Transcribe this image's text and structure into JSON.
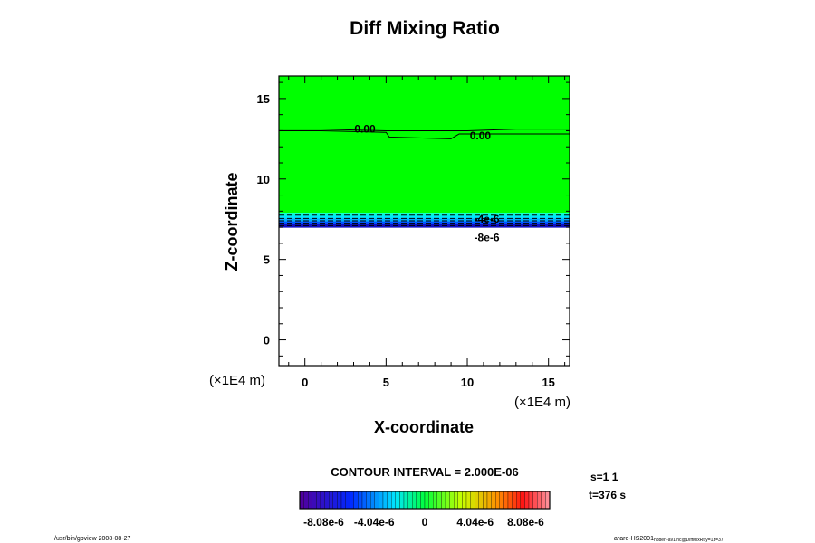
{
  "chart_data": {
    "type": "heatmap",
    "title": "Diff Mixing Ratio",
    "xlabel": "X-coordinate",
    "ylabel": "Z-coordinate",
    "x_unit": "(×1E4 m)",
    "y_unit": "(×1E4 m)",
    "xlim": [
      -1.6,
      16.3
    ],
    "ylim": [
      -1.6,
      16.4
    ],
    "xticks": [
      0,
      5,
      10,
      15
    ],
    "yticks": [
      0,
      5,
      10,
      15
    ],
    "fields": [
      {
        "name": "zero band",
        "z_from": 7.9,
        "z_to": 16.4,
        "color": "#00ff00"
      },
      {
        "name": "negative band",
        "z_from": 7.0,
        "z_to": 7.9,
        "colors": [
          "#00ffcc",
          "#00e5ff",
          "#00aaff",
          "#0055ff",
          "#1010c0"
        ]
      }
    ],
    "contours": [
      {
        "label": "0.00",
        "points": [
          [
            -1.6,
            13.0
          ],
          [
            1,
            13.0
          ],
          [
            5,
            12.9
          ],
          [
            5.2,
            12.6
          ],
          [
            9,
            12.5
          ],
          [
            9.5,
            12.8
          ],
          [
            16.3,
            12.8
          ]
        ]
      },
      {
        "label": "0.00",
        "points": [
          [
            -1.6,
            13.1
          ],
          [
            1,
            13.1
          ],
          [
            5,
            13.0
          ],
          [
            10,
            13.0
          ],
          [
            13,
            13.1
          ],
          [
            16.3,
            13.1
          ]
        ]
      }
    ],
    "contour_labels": [
      {
        "text": "0.00",
        "x": 3.7,
        "z": 13.1
      },
      {
        "text": "0.00",
        "x": 10.8,
        "z": 12.7
      },
      {
        "text": "-4e-6",
        "x": 11.2,
        "z": 7.5
      },
      {
        "text": "-8e-6",
        "x": 11.2,
        "z": 7.2
      }
    ],
    "dashed_levels_z": [
      7.75,
      7.55,
      7.4,
      7.25,
      7.1
    ],
    "contour_interval": "CONTOUR INTERVAL = 2.000E-06",
    "colorbar": {
      "min": -1e-05,
      "max": 1e-05,
      "ticks": [
        "-8.08e-6",
        "-4.04e-6",
        "0",
        "4.04e-6",
        "8.08e-6"
      ],
      "tick_values": [
        -8.08e-06,
        -4.04e-06,
        0,
        4.04e-06,
        8.08e-06
      ]
    },
    "info": [
      "s=1 1",
      "t=376 s"
    ],
    "footer_left": "/usr/bin/gpview 2008-08-27",
    "footer_right_main": "arare-HS2001",
    "footer_right_sub": "nobert-av1.nc@DiffMixRt,y=1,t=37"
  }
}
